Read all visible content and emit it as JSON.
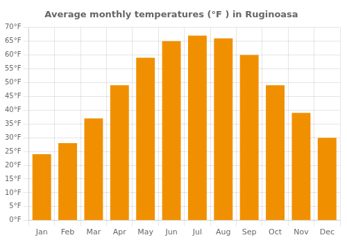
{
  "chart_data": {
    "type": "bar",
    "title": "Average monthly temperatures (°F ) in Ruginoasa",
    "categories": [
      "Jan",
      "Feb",
      "Mar",
      "Apr",
      "May",
      "Jun",
      "Jul",
      "Aug",
      "Sep",
      "Oct",
      "Nov",
      "Dec"
    ],
    "values": [
      24,
      28,
      37,
      49,
      59,
      65,
      67,
      66,
      60,
      49,
      39,
      30
    ],
    "color": "#F09000",
    "ylim": [
      0,
      70
    ],
    "yticks": [
      {
        "value": 0,
        "label": "0°F"
      },
      {
        "value": 5,
        "label": "5°F"
      },
      {
        "value": 10,
        "label": "10°F"
      },
      {
        "value": 15,
        "label": "15°F"
      },
      {
        "value": 20,
        "label": "20°F"
      },
      {
        "value": 25,
        "label": "25°F"
      },
      {
        "value": 30,
        "label": "30°F"
      },
      {
        "value": 35,
        "label": "35°F"
      },
      {
        "value": 40,
        "label": "40°F"
      },
      {
        "value": 45,
        "label": "45°F"
      },
      {
        "value": 50,
        "label": "50°F"
      },
      {
        "value": 55,
        "label": "55°F"
      },
      {
        "value": 60,
        "label": "60°F"
      },
      {
        "value": 65,
        "label": "65°F"
      },
      {
        "value": 70,
        "label": "70°F"
      }
    ],
    "grid": true
  }
}
